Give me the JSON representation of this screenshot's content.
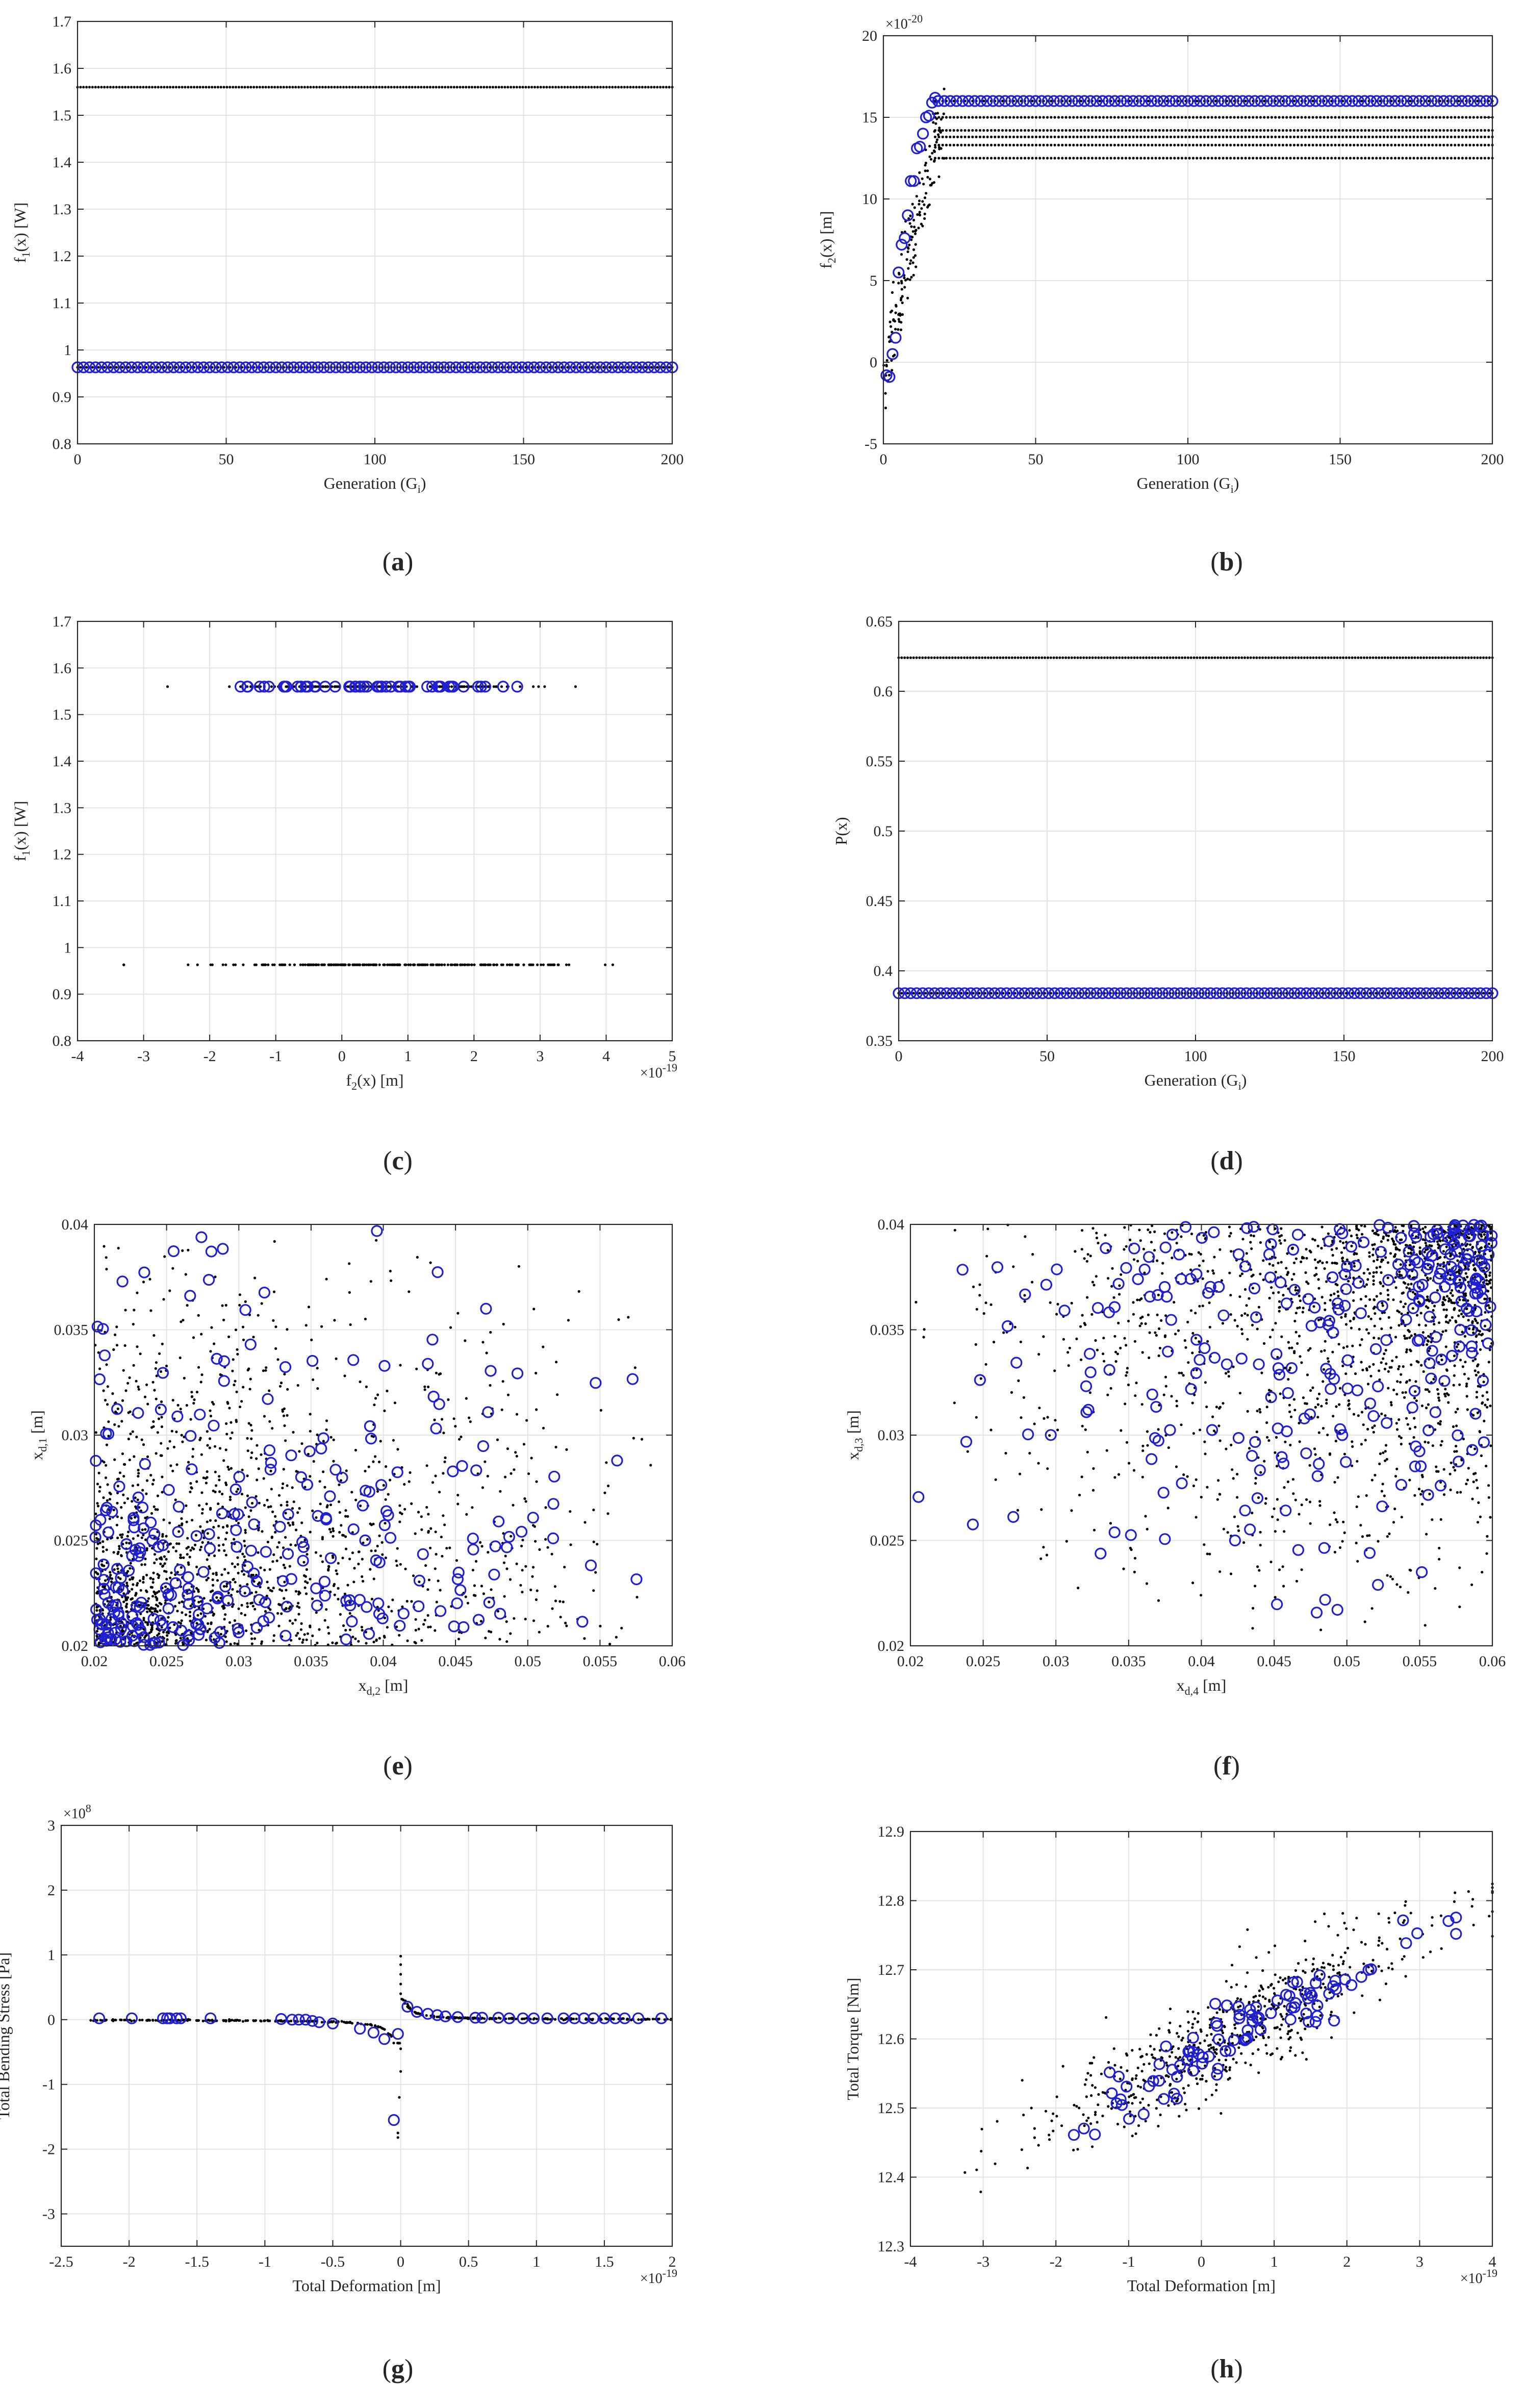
{
  "figure": {
    "colors": {
      "dominated": "#000000",
      "pareto": "#1f1fd6",
      "grid": "#e4e4e4",
      "axis": "#262626"
    }
  },
  "chart_data": [
    {
      "label": "(a)",
      "label_letter": "a",
      "type": "scatter",
      "xlabel": "Generation (G",
      "xlabel_sub": "i",
      "xlabel_post": ")",
      "ylabel": "f",
      "ylabel_sub": "1",
      "ylabel_post": "(x) [W]",
      "xlim": [
        0,
        200
      ],
      "ylim": [
        0.8,
        1.7
      ],
      "xticks": [
        0,
        50,
        100,
        150,
        200
      ],
      "xtick_labels": [
        "0",
        "50",
        "100",
        "150",
        "200"
      ],
      "yticks": [
        0.8,
        0.9,
        1.0,
        1.1,
        1.2,
        1.3,
        1.4,
        1.5,
        1.6,
        1.7
      ],
      "ytick_labels": [
        "0.8",
        "0.9",
        "1",
        "1.1",
        "1.2",
        "1.3",
        "1.4",
        "1.5",
        "1.6",
        "1.7"
      ],
      "grid": true,
      "series": [
        {
          "name": "population",
          "style": "dot",
          "gen": {
            "kind": "hline",
            "y": 1.56,
            "x0": 0,
            "x1": 200,
            "n": 200
          }
        },
        {
          "name": "population",
          "style": "dot",
          "gen": {
            "kind": "hline",
            "y": 0.963,
            "x0": 0,
            "x1": 200,
            "n": 200
          }
        },
        {
          "name": "pareto",
          "style": "circle",
          "gen": {
            "kind": "hline",
            "y": 0.963,
            "x0": 0,
            "x1": 200,
            "n": 100
          }
        }
      ]
    },
    {
      "label": "(b)",
      "label_letter": "b",
      "type": "scatter",
      "xlabel": "Generation (G",
      "xlabel_sub": "i",
      "xlabel_post": ")",
      "ylabel": "f",
      "ylabel_sub": "2",
      "ylabel_post": "(x) [m]",
      "xlim": [
        0,
        200
      ],
      "ylim": [
        -5,
        20
      ],
      "xticks": [
        0,
        50,
        100,
        150,
        200
      ],
      "xtick_labels": [
        "0",
        "50",
        "100",
        "150",
        "200"
      ],
      "yticks": [
        -5,
        0,
        5,
        10,
        15,
        20
      ],
      "ytick_labels": [
        "-5",
        "0",
        "5",
        "10",
        "15",
        "20"
      ],
      "y_exponent": "×10",
      "y_exponent_power": "-20",
      "grid": true,
      "series": [
        {
          "name": "population",
          "style": "dot",
          "gen": {
            "kind": "rise",
            "x0": 0,
            "x1": 20,
            "ystart": -1.5,
            "yend": 15,
            "spread": 2.2,
            "n": 160
          }
        },
        {
          "name": "population",
          "style": "dot",
          "gen": {
            "kind": "hlines",
            "ys": [
              12.5,
              13.3,
              13.8,
              14.2,
              15.0,
              16.0
            ],
            "x0": 17,
            "x1": 200,
            "n": 150
          }
        },
        {
          "name": "pareto",
          "style": "circle",
          "gen": {
            "kind": "points",
            "xs": [
              1,
              2,
              3,
              4,
              5,
              6,
              7,
              8,
              9,
              10,
              11,
              12,
              13,
              14,
              15,
              16,
              17,
              18
            ],
            "ys": [
              -0.8,
              -0.9,
              0.5,
              1.5,
              5.5,
              7.2,
              7.6,
              9.0,
              11.1,
              11.1,
              13.1,
              13.2,
              14.0,
              15.0,
              15.1,
              15.9,
              16.2,
              16.0
            ]
          }
        },
        {
          "name": "pareto",
          "style": "circle",
          "gen": {
            "kind": "hline",
            "y": 16.0,
            "x0": 18,
            "x1": 200,
            "n": 92
          }
        }
      ]
    },
    {
      "label": "(c)",
      "label_letter": "c",
      "type": "scatter",
      "xlabel": "f",
      "xlabel_sub": "2",
      "xlabel_post": "(x) [m]",
      "ylabel": "f",
      "ylabel_sub": "1",
      "ylabel_post": "(x) [W]",
      "xlim": [
        -4,
        5
      ],
      "ylim": [
        0.8,
        1.7
      ],
      "xticks": [
        -4,
        -3,
        -2,
        -1,
        0,
        1,
        2,
        3,
        4,
        5
      ],
      "xtick_labels": [
        "-4",
        "-3",
        "-2",
        "-1",
        "0",
        "1",
        "2",
        "3",
        "4",
        "5"
      ],
      "yticks": [
        0.8,
        0.9,
        1.0,
        1.1,
        1.2,
        1.3,
        1.4,
        1.5,
        1.6,
        1.7
      ],
      "ytick_labels": [
        "0.8",
        "0.9",
        "1",
        "1.1",
        "1.2",
        "1.3",
        "1.4",
        "1.5",
        "1.6",
        "1.7"
      ],
      "x_exponent": "×10",
      "x_exponent_power": "-19",
      "grid": true,
      "series": [
        {
          "name": "population",
          "style": "dot",
          "gen": {
            "kind": "hspread",
            "y": 1.56,
            "center": 0.6,
            "sd": 1.1,
            "xmin": -3.8,
            "xmax": 3.9,
            "n": 190
          }
        },
        {
          "name": "population",
          "style": "dot",
          "gen": {
            "kind": "hspread",
            "y": 0.963,
            "center": 0.6,
            "sd": 1.3,
            "xmin": -3.3,
            "xmax": 4.1,
            "n": 230
          }
        },
        {
          "name": "pareto",
          "style": "circle",
          "gen": {
            "kind": "hspread",
            "y": 1.56,
            "center": 0.6,
            "sd": 1.0,
            "xmin": -2.0,
            "xmax": 3.4,
            "n": 55
          }
        }
      ]
    },
    {
      "label": "(d)",
      "label_letter": "d",
      "type": "scatter",
      "xlabel": "Generation (G",
      "xlabel_sub": "i",
      "xlabel_post": ")",
      "ylabel": "P(x)",
      "ylabel_sub": "",
      "ylabel_post": "",
      "xlim": [
        0,
        200
      ],
      "ylim": [
        0.35,
        0.65
      ],
      "xticks": [
        0,
        50,
        100,
        150,
        200
      ],
      "xtick_labels": [
        "0",
        "50",
        "100",
        "150",
        "200"
      ],
      "yticks": [
        0.35,
        0.4,
        0.45,
        0.5,
        0.55,
        0.6,
        0.65
      ],
      "ytick_labels": [
        "0.35",
        "0.4",
        "0.45",
        "0.5",
        "0.55",
        "0.6",
        "0.65"
      ],
      "grid": true,
      "series": [
        {
          "name": "population",
          "style": "dot",
          "gen": {
            "kind": "hline",
            "y": 0.624,
            "x0": 0,
            "x1": 200,
            "n": 200
          }
        },
        {
          "name": "population",
          "style": "dot",
          "gen": {
            "kind": "hline",
            "y": 0.384,
            "x0": 0,
            "x1": 200,
            "n": 200
          }
        },
        {
          "name": "pareto",
          "style": "circle",
          "gen": {
            "kind": "hline",
            "y": 0.384,
            "x0": 0,
            "x1": 200,
            "n": 100
          }
        }
      ]
    },
    {
      "label": "(e)",
      "label_letter": "e",
      "type": "scatter",
      "xlabel": "x",
      "xlabel_sub": "d,2",
      "xlabel_post": " [m]",
      "ylabel": "x",
      "ylabel_sub": "d,1",
      "ylabel_post": " [m]",
      "xlim": [
        0.02,
        0.06
      ],
      "ylim": [
        0.02,
        0.04
      ],
      "xticks": [
        0.02,
        0.025,
        0.03,
        0.035,
        0.04,
        0.045,
        0.05,
        0.055,
        0.06
      ],
      "xtick_labels": [
        "0.02",
        "0.025",
        "0.03",
        "0.035",
        "0.04",
        "0.045",
        "0.05",
        "0.055",
        "0.06"
      ],
      "yticks": [
        0.02,
        0.025,
        0.03,
        0.035,
        0.04
      ],
      "ytick_labels": [
        "0.02",
        "0.025",
        "0.03",
        "0.035",
        "0.04"
      ],
      "grid": true,
      "series": [
        {
          "name": "population",
          "style": "dot",
          "gen": {
            "kind": "cluster",
            "corner": "top-right",
            "power": 0.45,
            "n": 1300
          }
        },
        {
          "name": "population",
          "style": "dot",
          "gen": {
            "kind": "cluster",
            "corner": "top-right",
            "power": 0.12,
            "n": 450
          }
        },
        {
          "name": "pareto",
          "style": "circle",
          "gen": {
            "kind": "cluster",
            "corner": "top-right",
            "power": 0.5,
            "n": 210
          }
        },
        {
          "name": "pareto",
          "style": "circle",
          "gen": {
            "kind": "cluster",
            "corner": "top-right",
            "power": 0.1,
            "n": 70
          }
        }
      ]
    },
    {
      "label": "(f)",
      "label_letter": "f",
      "type": "scatter",
      "xlabel": "x",
      "xlabel_sub": "d,4",
      "xlabel_post": " [m]",
      "ylabel": "x",
      "ylabel_sub": "d,3",
      "ylabel_post": " [m]",
      "xlim": [
        0.02,
        0.06
      ],
      "ylim": [
        0.02,
        0.04
      ],
      "xticks": [
        0.02,
        0.025,
        0.03,
        0.035,
        0.04,
        0.045,
        0.05,
        0.055,
        0.06
      ],
      "xtick_labels": [
        "0.02",
        "0.025",
        "0.03",
        "0.035",
        "0.04",
        "0.045",
        "0.05",
        "0.055",
        "0.06"
      ],
      "yticks": [
        0.02,
        0.025,
        0.03,
        0.035,
        0.04
      ],
      "ytick_labels": [
        "0.02",
        "0.025",
        "0.03",
        "0.035",
        "0.04"
      ],
      "grid": true,
      "series": [
        {
          "name": "population",
          "style": "dot",
          "gen": {
            "kind": "cluster",
            "corner": "bottom-left",
            "power": 0.45,
            "n": 1300
          }
        },
        {
          "name": "population",
          "style": "dot",
          "gen": {
            "kind": "cluster",
            "corner": "bottom-left",
            "power": 0.12,
            "n": 450
          }
        },
        {
          "name": "pareto",
          "style": "circle",
          "gen": {
            "kind": "cluster",
            "corner": "bottom-left",
            "power": 0.5,
            "n": 210
          }
        },
        {
          "name": "pareto",
          "style": "circle",
          "gen": {
            "kind": "cluster",
            "corner": "bottom-left",
            "power": 0.1,
            "n": 70
          }
        }
      ]
    },
    {
      "label": "(g)",
      "label_letter": "g",
      "type": "scatter",
      "xlabel": "Total Deformation [m]",
      "xlabel_sub": "",
      "xlabel_post": "",
      "ylabel": "Total Bending Stress [Pa]",
      "ylabel_sub": "",
      "ylabel_post": "",
      "xlim": [
        -2.5,
        2
      ],
      "ylim": [
        -3.5,
        3
      ],
      "xticks": [
        -2.5,
        -2,
        -1.5,
        -1,
        -0.5,
        0,
        0.5,
        1,
        1.5,
        2
      ],
      "xtick_labels": [
        "-2.5",
        "-2",
        "-1.5",
        "-1",
        "-0.5",
        "0",
        "0.5",
        "1",
        "1.5",
        "2"
      ],
      "yticks": [
        -3,
        -2,
        -1,
        0,
        1,
        2,
        3
      ],
      "ytick_labels": [
        "-3",
        "-2",
        "-1",
        "0",
        "1",
        "2",
        "3"
      ],
      "x_exponent": "×10",
      "x_exponent_power": "-19",
      "y_exponent": "×10",
      "y_exponent_power": "8",
      "grid": true,
      "series": [
        {
          "name": "population",
          "style": "dot",
          "gen": {
            "kind": "hyper",
            "x0": -2.3,
            "x1": 2.0,
            "n": 380
          }
        },
        {
          "name": "population",
          "style": "dot",
          "gen": {
            "kind": "points",
            "xs": [
              0.0,
              0.0,
              0.0,
              0.0,
              -0.02,
              -0.02,
              -0.01,
              0.0,
              0.0,
              0.0,
              0.02,
              0.03,
              0.05,
              0.06,
              0.08
            ],
            "ys": [
              0.98,
              0.85,
              0.7,
              0.55,
              -1.75,
              -1.82,
              -1.2,
              -0.8,
              -0.45,
              0.4,
              0.3,
              0.25,
              0.2,
              0.18,
              0.15
            ]
          }
        },
        {
          "name": "pareto",
          "style": "circle",
          "gen": {
            "kind": "points",
            "xs": [
              -2.22,
              -1.98,
              -1.75,
              -1.72,
              -1.7,
              -1.65,
              -1.62,
              -1.4,
              -0.88,
              -0.8,
              -0.75,
              -0.7,
              -0.65,
              -0.6,
              -0.5,
              -0.3,
              -0.2,
              -0.12,
              -0.05,
              -0.02,
              0.05,
              0.12,
              0.2,
              0.27,
              0.33,
              0.42,
              0.55,
              0.6,
              0.72,
              0.8,
              0.9,
              0.98,
              1.08,
              1.2,
              1.28,
              1.35,
              1.42,
              1.5,
              1.58,
              1.65,
              1.75,
              1.92
            ],
            "ys": [
              0.02,
              0.02,
              0.02,
              0.02,
              0.02,
              0.02,
              0.02,
              0.02,
              0.01,
              0.0,
              0.0,
              0.0,
              -0.02,
              -0.04,
              -0.06,
              -0.14,
              -0.2,
              -0.3,
              -1.55,
              -0.22,
              0.2,
              0.12,
              0.09,
              0.07,
              0.05,
              0.04,
              0.03,
              0.03,
              0.03,
              0.02,
              0.02,
              0.02,
              0.02,
              0.02,
              0.02,
              0.02,
              0.02,
              0.02,
              0.02,
              0.02,
              0.02,
              0.02
            ]
          }
        }
      ]
    },
    {
      "label": "(h)",
      "label_letter": "h",
      "type": "scatter",
      "xlabel": "Total Deformation [m]",
      "xlabel_sub": "",
      "xlabel_post": "",
      "ylabel": "Total Torque [Nm]",
      "ylabel_sub": "",
      "ylabel_post": "",
      "xlim": [
        -4,
        4
      ],
      "ylim": [
        12.3,
        12.9
      ],
      "xticks": [
        -4,
        -3,
        -2,
        -1,
        0,
        1,
        2,
        3,
        4
      ],
      "xtick_labels": [
        "-4",
        "-3",
        "-2",
        "-1",
        "0",
        "1",
        "2",
        "3",
        "4"
      ],
      "yticks": [
        12.3,
        12.4,
        12.5,
        12.6,
        12.7,
        12.8,
        12.9
      ],
      "ytick_labels": [
        "12.3",
        "12.4",
        "12.5",
        "12.6",
        "12.7",
        "12.8",
        "12.9"
      ],
      "x_exponent": "×10",
      "x_exponent_power": "-19",
      "grid": true,
      "series": [
        {
          "name": "population",
          "style": "dot",
          "gen": {
            "kind": "linear",
            "a": 12.585,
            "b": 0.055,
            "xcenter": 0.4,
            "xsd": 1.3,
            "xmin": -3.6,
            "xmax": 4.0,
            "ysd": 0.035,
            "n": 620
          }
        },
        {
          "name": "pareto",
          "style": "circle",
          "gen": {
            "kind": "linear",
            "a": 12.585,
            "b": 0.055,
            "xcenter": 0.6,
            "xsd": 1.2,
            "xmin": -2.8,
            "xmax": 3.5,
            "ysd": 0.025,
            "n": 95
          }
        }
      ]
    }
  ]
}
